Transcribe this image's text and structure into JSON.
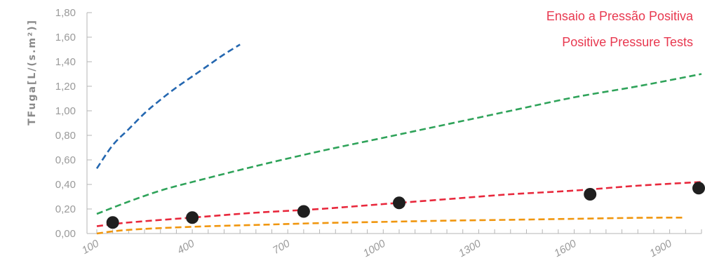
{
  "chart_data": {
    "type": "scatter",
    "title": "",
    "xlabel": "",
    "ylabel": "TFuga[L/(s.m²)]",
    "xlim": [
      100,
      2000
    ],
    "ylim": [
      0,
      1.8
    ],
    "x_ticks": [
      100,
      400,
      700,
      1000,
      1300,
      1600,
      1900
    ],
    "y_ticks": [
      0,
      0.2,
      0.4,
      0.6,
      0.8,
      1.0,
      1.2,
      1.4,
      1.6,
      1.8
    ],
    "y_tick_labels": [
      "0,00",
      "0,20",
      "0,40",
      "0,60",
      "0,80",
      "1,00",
      "1,20",
      "1,40",
      "1,60",
      "1,80"
    ],
    "x_tick_labels": [
      "100",
      "400",
      "700",
      "1000",
      "1300",
      "1600",
      "1900"
    ],
    "grid": false,
    "annotations": [
      "Ensaio a Pressão Positiva",
      "Positive Pressure Tests"
    ],
    "annotation_color": "#e8384f",
    "points": {
      "color": "#1f1f1f",
      "x": [
        150,
        400,
        750,
        1050,
        1650,
        2000
      ],
      "y": [
        0.09,
        0.13,
        0.18,
        0.25,
        0.32,
        0.37
      ]
    },
    "curves": [
      {
        "color": "#2467b0",
        "x": [
          100,
          150,
          200,
          250,
          300,
          350,
          400,
          450,
          500,
          550
        ],
        "y": [
          0.53,
          0.72,
          0.85,
          0.98,
          1.09,
          1.19,
          1.28,
          1.37,
          1.46,
          1.54
        ]
      },
      {
        "color": "#2fa35a",
        "x": [
          100,
          200,
          300,
          400,
          600,
          800,
          1000,
          1200,
          1400,
          1600,
          1800,
          2000
        ],
        "y": [
          0.16,
          0.26,
          0.35,
          0.42,
          0.55,
          0.67,
          0.78,
          0.89,
          1.0,
          1.11,
          1.2,
          1.3
        ]
      },
      {
        "color": "#e8283c",
        "x": [
          100,
          200,
          400,
          600,
          800,
          1000,
          1200,
          1400,
          1600,
          1800,
          2000
        ],
        "y": [
          0.06,
          0.09,
          0.13,
          0.17,
          0.2,
          0.24,
          0.28,
          0.32,
          0.35,
          0.39,
          0.42
        ]
      },
      {
        "color": "#f0960e",
        "x": [
          100,
          200,
          400,
          600,
          800,
          1000,
          1200,
          1400,
          1600,
          1800,
          1950
        ],
        "y": [
          0.0,
          0.03,
          0.055,
          0.07,
          0.085,
          0.095,
          0.105,
          0.112,
          0.12,
          0.128,
          0.13
        ]
      }
    ]
  }
}
